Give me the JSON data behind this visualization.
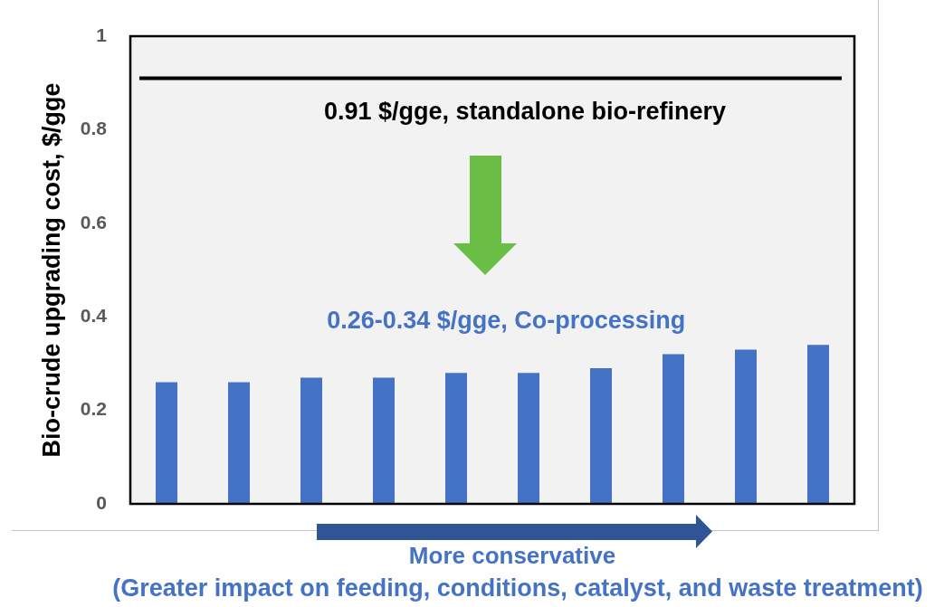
{
  "chart_data": {
    "type": "bar",
    "ylabel": "Bio-crude upgrading cost, $/gge",
    "xlabel": "More conservative",
    "categories": [
      null,
      null,
      null,
      null,
      null,
      null,
      null,
      null,
      null,
      null
    ],
    "values": [
      0.26,
      0.26,
      0.27,
      0.27,
      0.28,
      0.28,
      0.29,
      0.32,
      0.33,
      0.34
    ],
    "color": "#4472c4",
    "ylim": [
      0,
      1
    ],
    "yticks": [
      0,
      0.2,
      0.4,
      0.6,
      0.8,
      1
    ],
    "grid": false,
    "legend": false,
    "tick_labels": "y",
    "ref_lines": [
      {
        "axis": "y",
        "value": 0.91,
        "label": "0.91 $/gge, standalone bio-refinery",
        "color": "#000000"
      }
    ],
    "annotations": [
      "0.26-0.34 $/gge, Co-processing",
      "(Greater impact on feeding, conditions, catalyst, and waste treatment)"
    ]
  }
}
